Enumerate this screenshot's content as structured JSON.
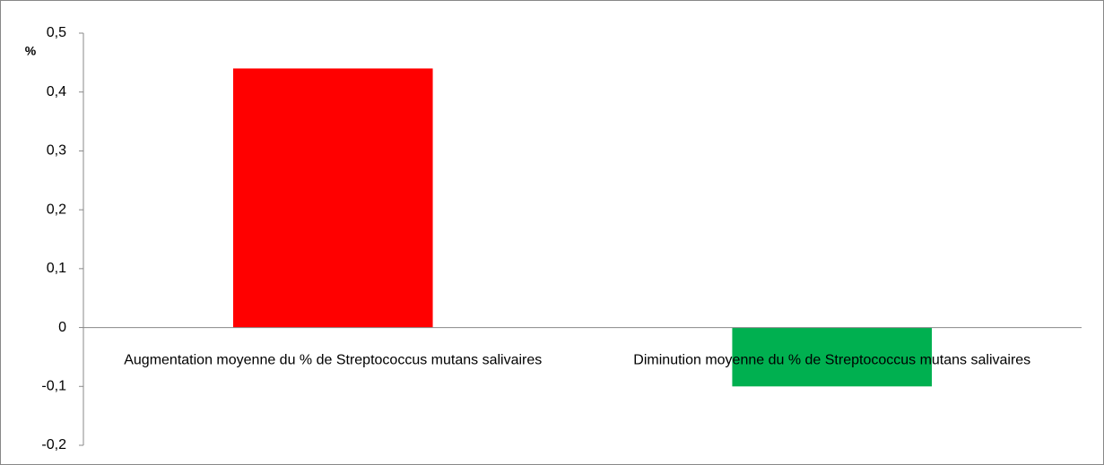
{
  "chart_data": {
    "type": "bar",
    "y_label": "%",
    "categories": [
      "Augmentation moyenne du % de Streptococcus mutans salivaires",
      "Diminution moyenne du % de Streptococcus mutans salivaires"
    ],
    "values": [
      0.44,
      -0.1
    ],
    "colors": [
      "#ff0000",
      "#00b050"
    ],
    "ylim": [
      -0.2,
      0.5
    ],
    "yticks": [
      {
        "value": -0.2,
        "label": "-0,2"
      },
      {
        "value": -0.1,
        "label": "-0,1"
      },
      0,
      {
        "value": 0.1,
        "label": "0,1"
      },
      {
        "value": 0.2,
        "label": "0,2"
      },
      {
        "value": 0.3,
        "label": "0,3"
      },
      {
        "value": 0.4,
        "label": "0,4"
      },
      {
        "value": 0.5,
        "label": "0,5"
      }
    ],
    "grid": false
  }
}
